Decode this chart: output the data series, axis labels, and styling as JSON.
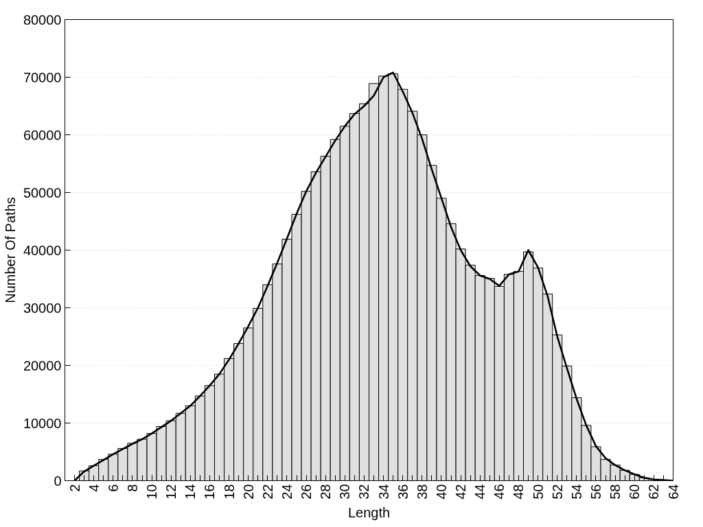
{
  "chart_data": {
    "type": "bar",
    "xlabel": "Length",
    "ylabel": "Number Of Paths",
    "x": [
      2,
      3,
      4,
      5,
      6,
      7,
      8,
      9,
      10,
      11,
      12,
      13,
      14,
      15,
      16,
      17,
      18,
      19,
      20,
      21,
      22,
      23,
      24,
      25,
      26,
      27,
      28,
      29,
      30,
      31,
      32,
      33,
      34,
      35,
      36,
      37,
      38,
      39,
      40,
      41,
      42,
      43,
      44,
      45,
      46,
      47,
      48,
      49,
      50,
      51,
      52,
      53,
      54,
      55,
      56,
      57,
      58,
      59,
      60,
      61,
      62,
      63,
      64
    ],
    "series": [
      {
        "color": "#e0e0e0",
        "values": [
          null,
          1700,
          2600,
          3700,
          4600,
          5600,
          6500,
          7200,
          8200,
          9400,
          10400,
          11700,
          13000,
          14700,
          16500,
          18500,
          21200,
          23800,
          26500,
          29900,
          34000,
          37600,
          41900,
          46200,
          50200,
          53600,
          56300,
          59200,
          61500,
          63700,
          65400,
          68900,
          70200,
          70600,
          67900,
          64100,
          60000,
          54700,
          49000,
          44600,
          40200,
          37400,
          35600,
          35100,
          33700,
          35800,
          36300,
          39700,
          36900,
          32400,
          25300,
          19900,
          14400,
          9600,
          5900,
          3700,
          2700,
          1800,
          1100,
          500,
          null,
          null,
          null
        ]
      },
      {
        "type": "line",
        "color": "#000000",
        "line_style": "solid",
        "values": [
          0,
          1600,
          2600,
          3600,
          4600,
          5500,
          6400,
          7200,
          8200,
          9300,
          10400,
          11700,
          13000,
          14700,
          16500,
          18500,
          21000,
          23800,
          26800,
          30000,
          33800,
          37800,
          42000,
          46300,
          50200,
          53400,
          56200,
          59000,
          61500,
          63600,
          65000,
          66800,
          70000,
          70800,
          67500,
          63800,
          59300,
          54000,
          49000,
          44000,
          40000,
          37200,
          35600,
          35000,
          33800,
          35800,
          36300,
          40000,
          37000,
          32000,
          25000,
          19500,
          14200,
          9600,
          6000,
          3900,
          2700,
          1800,
          1100,
          500,
          200,
          100,
          0
        ]
      }
    ],
    "xlim": [
      1,
      64
    ],
    "xticks": [
      2,
      {
        "value": 3,
        "label": null
      },
      4,
      {
        "value": 5,
        "label": null
      },
      6,
      {
        "value": 7,
        "label": null
      },
      8,
      {
        "value": 9,
        "label": null
      },
      10,
      {
        "value": 11,
        "label": null
      },
      12,
      {
        "value": 13,
        "label": null
      },
      14,
      {
        "value": 15,
        "label": null
      },
      16,
      {
        "value": 17,
        "label": null
      },
      18,
      {
        "value": 19,
        "label": null
      },
      20,
      {
        "value": 21,
        "label": null
      },
      22,
      {
        "value": 23,
        "label": null
      },
      24,
      {
        "value": 25,
        "label": null
      },
      26,
      {
        "value": 27,
        "label": null
      },
      28,
      {
        "value": 29,
        "label": null
      },
      30,
      {
        "value": 31,
        "label": null
      },
      32,
      {
        "value": 33,
        "label": null
      },
      34,
      {
        "value": 35,
        "label": null
      },
      36,
      {
        "value": 37,
        "label": null
      },
      38,
      {
        "value": 39,
        "label": null
      },
      40,
      {
        "value": 41,
        "label": null
      },
      42,
      {
        "value": 43,
        "label": null
      },
      44,
      {
        "value": 45,
        "label": null
      },
      46,
      {
        "value": 47,
        "label": null
      },
      48,
      {
        "value": 49,
        "label": null
      },
      50,
      {
        "value": 51,
        "label": null
      },
      52,
      {
        "value": 53,
        "label": null
      },
      54,
      {
        "value": 55,
        "label": null
      },
      56,
      {
        "value": 57,
        "label": null
      },
      58,
      {
        "value": 59,
        "label": null
      },
      60,
      {
        "value": 61,
        "label": null
      },
      62,
      {
        "value": 63,
        "label": null
      },
      64
    ],
    "ylim": [
      0,
      80000
    ],
    "yticks": [
      0,
      10000,
      20000,
      30000,
      40000,
      50000,
      60000,
      70000,
      80000
    ],
    "grid": "y"
  }
}
